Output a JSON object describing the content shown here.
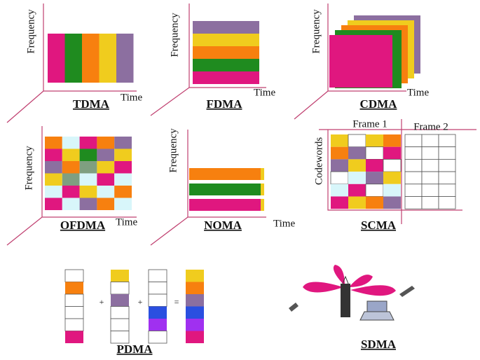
{
  "panels": [
    {
      "title": "TDMA",
      "y_label": "Frequency",
      "x_label": "Time"
    },
    {
      "title": "FDMA",
      "y_label": "Frequency",
      "x_label": "Time"
    },
    {
      "title": "CDMA",
      "y_label": "Frequency",
      "x_label": "Time"
    },
    {
      "title": "OFDMA",
      "y_label": "Frequency",
      "x_label": "Time"
    },
    {
      "title": "NOMA",
      "y_label": "Frequency",
      "x_label": "Time"
    },
    {
      "title": "SCMA",
      "y_label": "Codewords",
      "frames": [
        "Frame 1",
        "Frame 2"
      ]
    },
    {
      "title": "PDMA",
      "operators": [
        "+",
        "+",
        "="
      ]
    },
    {
      "title": "SDMA"
    }
  ]
}
